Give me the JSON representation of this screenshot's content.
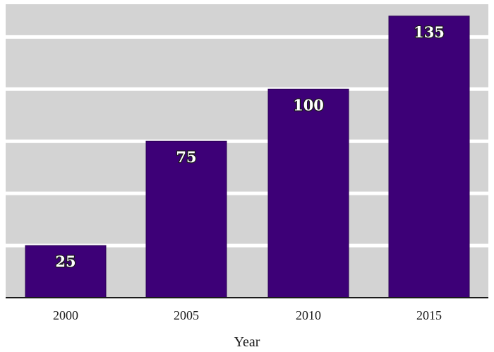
{
  "chart_data": {
    "type": "bar",
    "categories": [
      "2000",
      "2005",
      "2010",
      "2015"
    ],
    "values": [
      25,
      75,
      100,
      135
    ],
    "data_labels": [
      "25",
      "75",
      "100",
      "135"
    ],
    "title": "",
    "xlabel": "Year",
    "ylabel": "",
    "ylim": [
      0,
      140
    ],
    "grid": true,
    "gridlines_y": [
      50,
      100
    ],
    "y_tick_labels_shown": false,
    "colors": {
      "bar": "#3d0077",
      "bar_edge": "#2a0055",
      "panel_background": "#d3d3d3",
      "gridline": "#ffffff",
      "axis_line": "#1a1a1a",
      "label_fill": "#ffffff",
      "label_outline": "#1a1a1a"
    }
  }
}
